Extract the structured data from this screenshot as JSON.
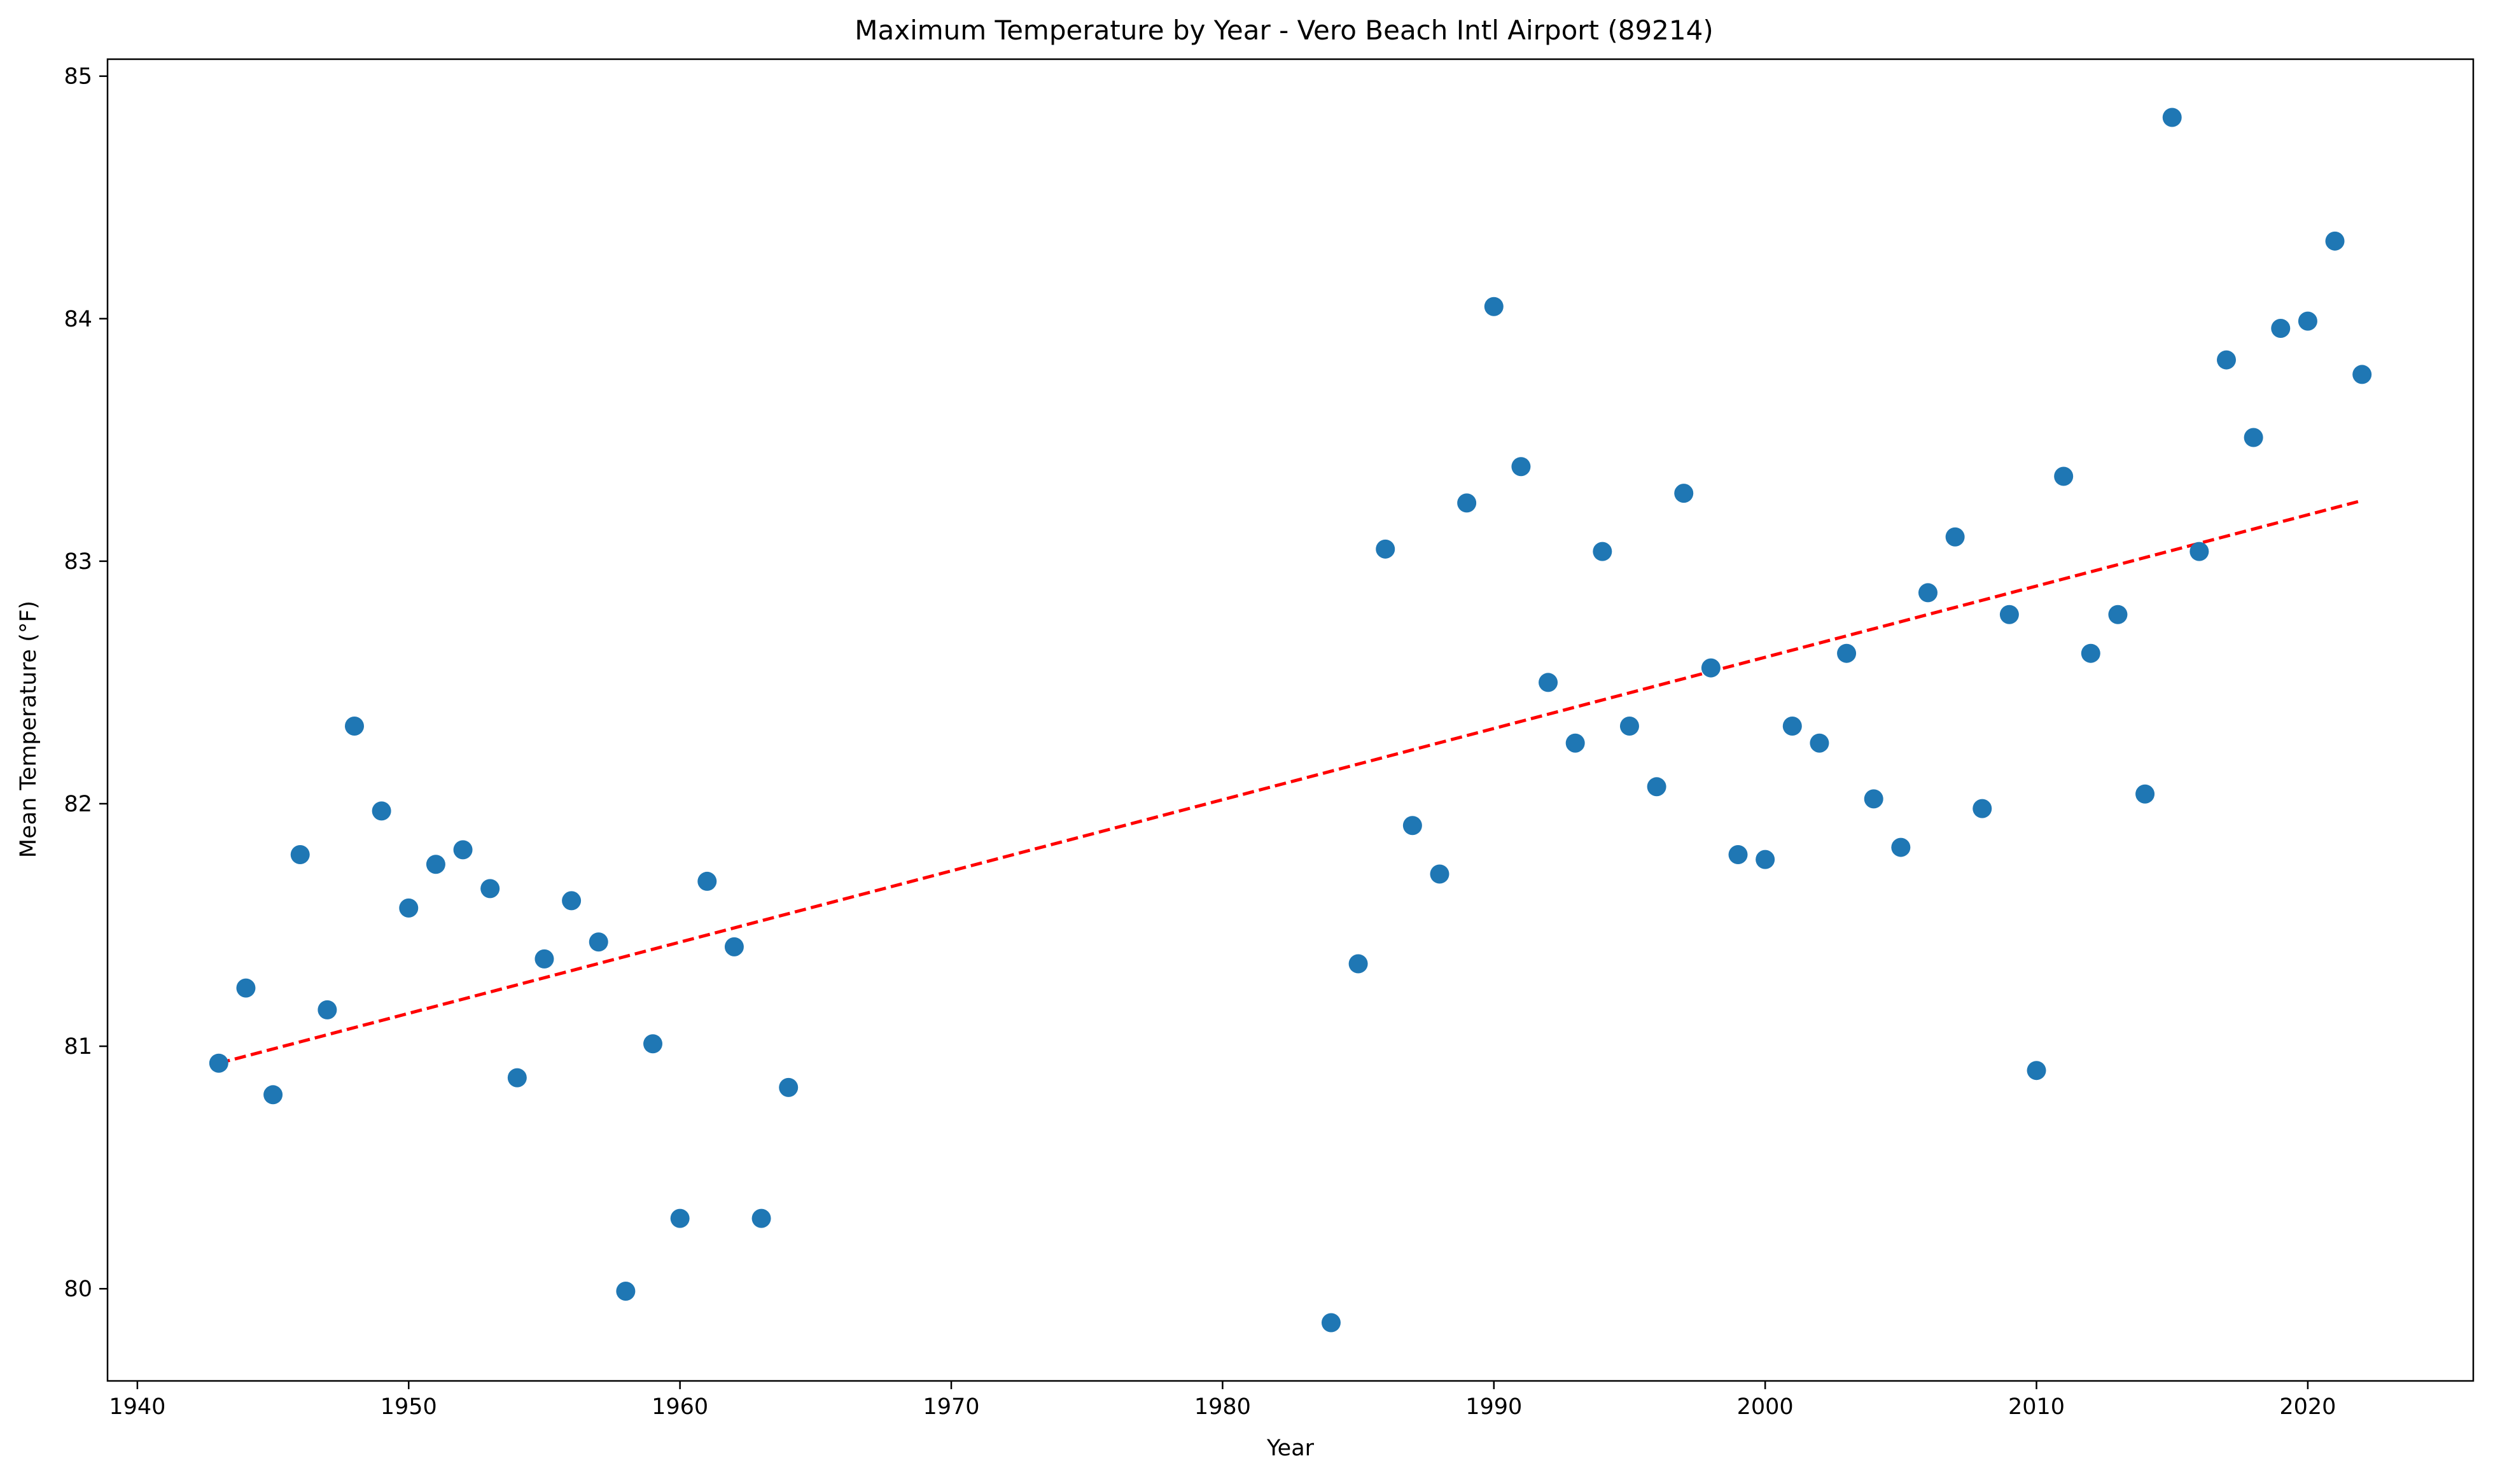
{
  "chart_data": {
    "type": "scatter",
    "title": "Maximum Temperature by Year - Vero Beach Intl Airport (89214)",
    "xlabel": "Year",
    "ylabel": "Mean Temperature (°F)",
    "xlim": [
      1938.9,
      2026.1
    ],
    "ylim": [
      79.62,
      85.07
    ],
    "xticks": [
      1940,
      1950,
      1960,
      1970,
      1980,
      1990,
      2000,
      2010,
      2020
    ],
    "yticks": [
      80,
      81,
      82,
      83,
      84,
      85
    ],
    "grid": false,
    "legend": "none",
    "series": [
      {
        "marker_color": "#1f77b4",
        "points": [
          {
            "x": 1943,
            "y": 80.93
          },
          {
            "x": 1944,
            "y": 81.24
          },
          {
            "x": 1945,
            "y": 80.8
          },
          {
            "x": 1946,
            "y": 81.79
          },
          {
            "x": 1947,
            "y": 81.15
          },
          {
            "x": 1948,
            "y": 82.32
          },
          {
            "x": 1949,
            "y": 81.97
          },
          {
            "x": 1950,
            "y": 81.57
          },
          {
            "x": 1951,
            "y": 81.75
          },
          {
            "x": 1952,
            "y": 81.81
          },
          {
            "x": 1953,
            "y": 81.65
          },
          {
            "x": 1954,
            "y": 80.87
          },
          {
            "x": 1955,
            "y": 81.36
          },
          {
            "x": 1956,
            "y": 81.6
          },
          {
            "x": 1957,
            "y": 81.43
          },
          {
            "x": 1958,
            "y": 79.99
          },
          {
            "x": 1959,
            "y": 81.01
          },
          {
            "x": 1960,
            "y": 80.29
          },
          {
            "x": 1961,
            "y": 81.68
          },
          {
            "x": 1962,
            "y": 81.41
          },
          {
            "x": 1963,
            "y": 80.29
          },
          {
            "x": 1964,
            "y": 80.83
          },
          {
            "x": 1984,
            "y": 79.86
          },
          {
            "x": 1985,
            "y": 81.34
          },
          {
            "x": 1986,
            "y": 83.05
          },
          {
            "x": 1987,
            "y": 81.91
          },
          {
            "x": 1988,
            "y": 81.71
          },
          {
            "x": 1989,
            "y": 83.24
          },
          {
            "x": 1990,
            "y": 84.05
          },
          {
            "x": 1991,
            "y": 83.39
          },
          {
            "x": 1992,
            "y": 82.5
          },
          {
            "x": 1993,
            "y": 82.25
          },
          {
            "x": 1994,
            "y": 83.04
          },
          {
            "x": 1995,
            "y": 82.32
          },
          {
            "x": 1996,
            "y": 82.07
          },
          {
            "x": 1997,
            "y": 83.28
          },
          {
            "x": 1998,
            "y": 82.56
          },
          {
            "x": 1999,
            "y": 81.79
          },
          {
            "x": 2000,
            "y": 81.77
          },
          {
            "x": 2001,
            "y": 82.32
          },
          {
            "x": 2002,
            "y": 82.25
          },
          {
            "x": 2003,
            "y": 82.62
          },
          {
            "x": 2004,
            "y": 82.02
          },
          {
            "x": 2005,
            "y": 81.82
          },
          {
            "x": 2006,
            "y": 82.87
          },
          {
            "x": 2007,
            "y": 83.1
          },
          {
            "x": 2008,
            "y": 81.98
          },
          {
            "x": 2009,
            "y": 82.78
          },
          {
            "x": 2010,
            "y": 80.9
          },
          {
            "x": 2011,
            "y": 83.35
          },
          {
            "x": 2012,
            "y": 82.62
          },
          {
            "x": 2013,
            "y": 82.78
          },
          {
            "x": 2014,
            "y": 82.04
          },
          {
            "x": 2015,
            "y": 84.83
          },
          {
            "x": 2016,
            "y": 83.04
          },
          {
            "x": 2017,
            "y": 83.83
          },
          {
            "x": 2018,
            "y": 83.51
          },
          {
            "x": 2019,
            "y": 83.96
          },
          {
            "x": 2020,
            "y": 83.99
          },
          {
            "x": 2021,
            "y": 84.32
          },
          {
            "x": 2022,
            "y": 83.77
          }
        ]
      }
    ],
    "trendline": {
      "style": "dashed",
      "color": "#ff0000",
      "points": [
        {
          "x": 1943,
          "y": 80.93
        },
        {
          "x": 2022,
          "y": 83.25
        }
      ]
    }
  }
}
